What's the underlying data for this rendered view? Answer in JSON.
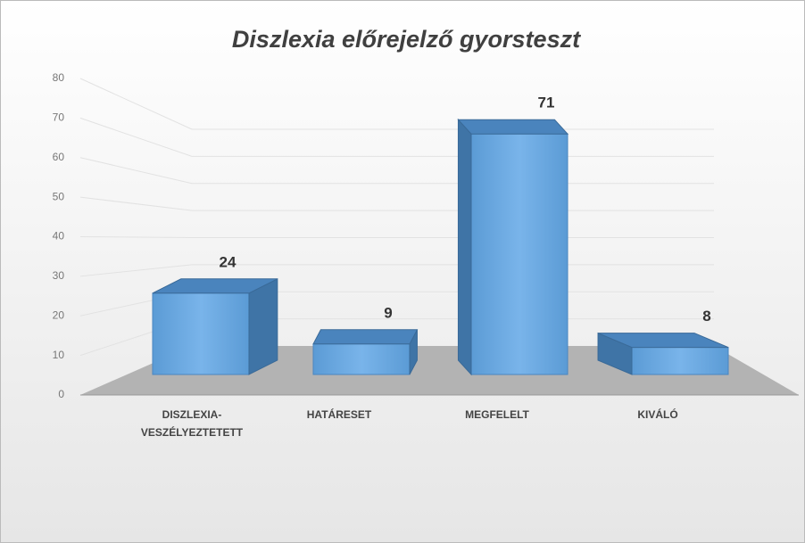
{
  "chart_data": {
    "type": "bar3d",
    "title": "Diszlexia előrejelző gyorsteszt",
    "categories": [
      "DISZLEXIA-VESZÉLYEZTETETT",
      "HATÁRESET",
      "MEGFELELT",
      "KIVÁLÓ"
    ],
    "values": [
      24,
      9,
      71,
      8
    ],
    "color": "#5b9bd5",
    "ylim": [
      0,
      80
    ],
    "yticks": [
      0,
      10,
      20,
      30,
      40,
      50,
      60,
      70,
      80
    ],
    "grid": true
  }
}
